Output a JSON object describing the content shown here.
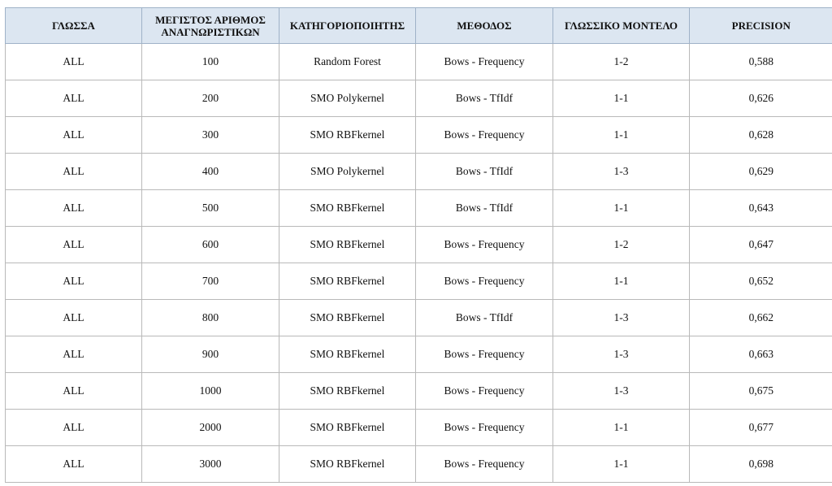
{
  "table": {
    "headers": [
      "ΓΛΩΣΣΑ",
      "ΜΕΓΙΣΤΟΣ ΑΡΙΘΜΟΣ ΑΝΑΓΝΩΡΙΣΤΙΚΩΝ",
      "ΚΑΤΗΓΟΡΙΟΠΟΙΗΤΗΣ",
      "ΜΕΘΟΔΟΣ",
      "ΓΛΩΣΣΙΚΟ ΜΟΝΤΕΛΟ",
      "PRECISION"
    ],
    "rows": [
      [
        "ALL",
        "100",
        "Random Forest",
        "Bows - Frequency",
        "1-2",
        "0,588"
      ],
      [
        "ALL",
        "200",
        "SMO Polykernel",
        "Bows - TfIdf",
        "1-1",
        "0,626"
      ],
      [
        "ALL",
        "300",
        "SMO RBFkernel",
        "Bows - Frequency",
        "1-1",
        "0,628"
      ],
      [
        "ALL",
        "400",
        "SMO Polykernel",
        "Bows - TfIdf",
        "1-3",
        "0,629"
      ],
      [
        "ALL",
        "500",
        "SMO RBFkernel",
        "Bows - TfIdf",
        "1-1",
        "0,643"
      ],
      [
        "ALL",
        "600",
        "SMO RBFkernel",
        "Bows - Frequency",
        "1-2",
        "0,647"
      ],
      [
        "ALL",
        "700",
        "SMO RBFkernel",
        "Bows - Frequency",
        "1-1",
        "0,652"
      ],
      [
        "ALL",
        "800",
        "SMO RBFkernel",
        "Bows - TfIdf",
        "1-3",
        "0,662"
      ],
      [
        "ALL",
        "900",
        "SMO RBFkernel",
        "Bows - Frequency",
        "1-3",
        "0,663"
      ],
      [
        "ALL",
        "1000",
        "SMO RBFkernel",
        "Bows - Frequency",
        "1-3",
        "0,675"
      ],
      [
        "ALL",
        "2000",
        "SMO RBFkernel",
        "Bows - Frequency",
        "1-1",
        "0,677"
      ],
      [
        "ALL",
        "3000",
        "SMO RBFkernel",
        "Bows - Frequency",
        "1-1",
        "0,698"
      ]
    ]
  },
  "colors": {
    "header_background": "#dce6f1",
    "grid_line": "#b9b9b9",
    "text": "#111111"
  }
}
